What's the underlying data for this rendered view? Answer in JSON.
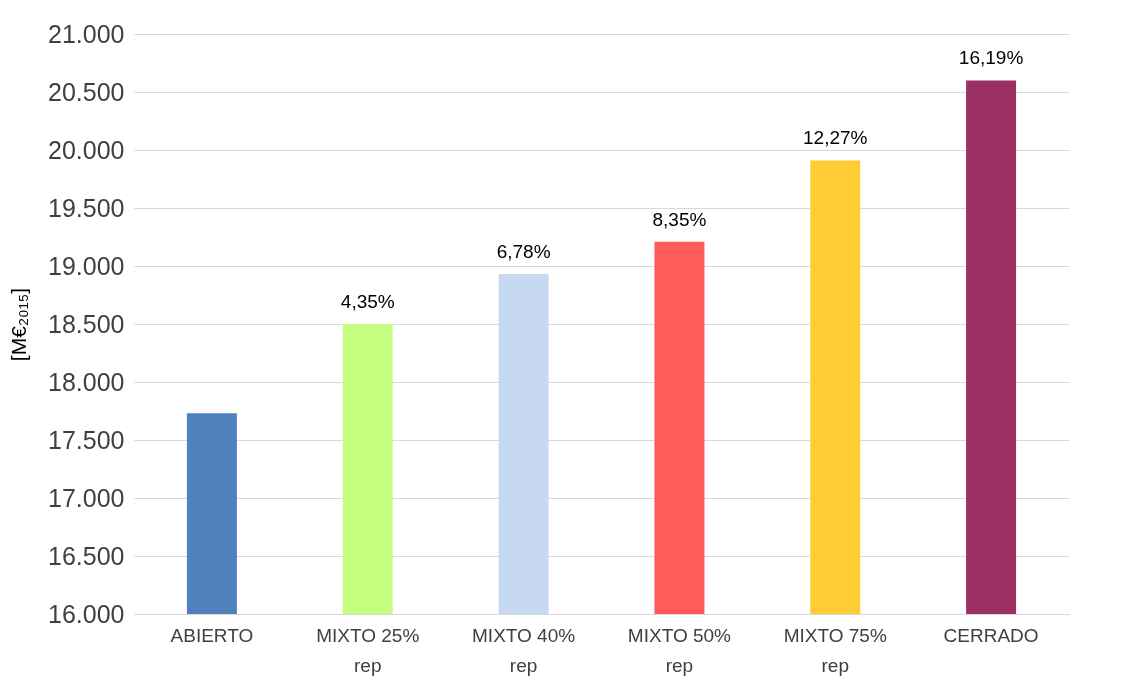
{
  "chart_data": {
    "type": "bar",
    "ylabel": "[M€₂₀₁₅]",
    "categories": [
      "ABIERTO",
      "MIXTO 25% rep",
      "MIXTO 40% rep",
      "MIXTO 50% rep",
      "MIXTO 75% rep",
      "CERRADO"
    ],
    "values": [
      17730,
      18500,
      18930,
      19210,
      19910,
      20600
    ],
    "colors": [
      "#4f81bd",
      "#c6ff80",
      "#c6d9f1",
      "#ff5b5b",
      "#ffcc33",
      "#9b2f62"
    ],
    "annotations": [
      {
        "text": "4,35%",
        "x": "MIXTO 25% rep",
        "y": 18500
      },
      {
        "text": "6,78%",
        "x": "MIXTO 40% rep",
        "y": 18930
      },
      {
        "text": "8,35%",
        "x": "MIXTO 50% rep",
        "y": 19210
      },
      {
        "text": "12,27%",
        "x": "MIXTO 75% rep",
        "y": 19910
      },
      {
        "text": "16,19%",
        "x": "CERRADO",
        "y": 20600
      }
    ],
    "ylim": [
      16000,
      21000
    ],
    "yticks": [
      {
        "value": 16000,
        "label": "16.000"
      },
      {
        "value": 16500,
        "label": "16.500"
      },
      {
        "value": 17000,
        "label": "17.000"
      },
      {
        "value": 17500,
        "label": "17.500"
      },
      {
        "value": 18000,
        "label": "18.000"
      },
      {
        "value": 18500,
        "label": "18.500"
      },
      {
        "value": 19000,
        "label": "19.000"
      },
      {
        "value": 19500,
        "label": "19.500"
      },
      {
        "value": 20000,
        "label": "20.000"
      },
      {
        "value": 20500,
        "label": "20.500"
      },
      {
        "value": 21000,
        "label": "21.000"
      }
    ],
    "grid": "y"
  }
}
